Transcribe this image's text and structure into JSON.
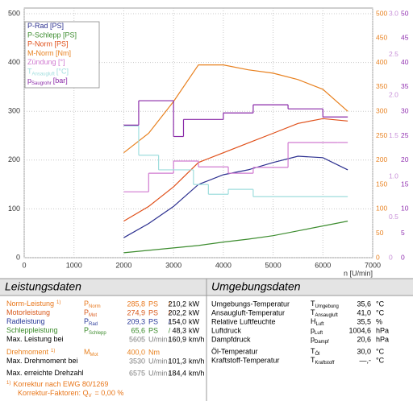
{
  "chart_data": {
    "type": "line",
    "x_label": "n [U/min]",
    "xlim": [
      0,
      7000
    ],
    "xticks": [
      0,
      1000,
      2000,
      3000,
      4000,
      5000,
      6000,
      7000
    ],
    "ylim": [
      0,
      500
    ],
    "yticks": [
      0,
      100,
      200,
      300,
      400,
      500
    ],
    "y2lim": [
      0,
      500
    ],
    "y2ticks": [
      0,
      50,
      100,
      150,
      200,
      250,
      300,
      350,
      400,
      450,
      500
    ],
    "y2color": "#e8801e",
    "y3lim": [
      0,
      3
    ],
    "y3ticks": [
      0,
      0.5,
      {
        "value": 1,
        "label": "1.0"
      },
      1.5,
      {
        "value": 2,
        "label": "2.0"
      },
      2.5,
      {
        "value": 3,
        "label": "3.0"
      }
    ],
    "y3color": "#c890d8",
    "y4lim": [
      0,
      50
    ],
    "y4ticks": [
      0,
      5,
      10,
      15,
      20,
      25,
      30,
      35,
      40,
      45,
      50
    ],
    "y4color": "#9030b0",
    "grid": true,
    "legend": "upper left",
    "series": [
      {
        "name": "P-Rad [PS]",
        "color": "#2b2f8f",
        "style": "line",
        "x": [
          2000,
          2500,
          3000,
          3500,
          4000,
          4500,
          5000,
          5500,
          6000,
          6500
        ],
        "values": [
          41,
          70,
          105,
          150,
          170,
          180,
          195,
          208,
          205,
          180
        ]
      },
      {
        "name": "P-Schlepp [PS]",
        "color": "#3c8c2e",
        "style": "line",
        "x": [
          2000,
          2500,
          3000,
          3500,
          4000,
          4500,
          5000,
          5500,
          6000,
          6500
        ],
        "values": [
          10,
          15,
          20,
          25,
          32,
          38,
          45,
          55,
          65,
          75
        ]
      },
      {
        "name": "P-Norm [PS]",
        "color": "#e0501a",
        "style": "line",
        "x": [
          2000,
          2500,
          3000,
          3500,
          4000,
          4500,
          5000,
          5500,
          6000,
          6500
        ],
        "values": [
          75,
          105,
          145,
          195,
          215,
          235,
          255,
          275,
          285,
          280
        ]
      },
      {
        "name": "M-Norm [Nm]",
        "color": "#e8801e",
        "style": "line",
        "axis": "y2",
        "x": [
          2000,
          2500,
          3000,
          3500,
          4000,
          4500,
          5000,
          5500,
          6000,
          6500
        ],
        "values": [
          215,
          255,
          320,
          395,
          395,
          385,
          378,
          365,
          345,
          300
        ]
      },
      {
        "name": "Zündung [°]",
        "color": "#d07ad0",
        "style": "steps",
        "axis": "y4",
        "x": [
          2000,
          2500,
          3000,
          3500,
          4100,
          4600,
          5300,
          6300,
          6500
        ],
        "values": [
          13.5,
          17.3,
          19.8,
          18.6,
          17.3,
          18.5,
          23.6,
          23.6,
          23.6
        ]
      },
      {
        "name": "T",
        "name_sub": "Ansaugluft",
        "name_unit": "[°C]",
        "color": "#9fdede",
        "style": "steps",
        "axis": "y4",
        "x": [
          2000,
          2300,
          2700,
          3400,
          3700,
          4100,
          4600,
          5000,
          6500
        ],
        "values": [
          27,
          21,
          18,
          15,
          13,
          14,
          12.5,
          12.5,
          12.5
        ]
      },
      {
        "name": "p",
        "name_sub": "Saugrohr",
        "name_unit": "[bar]",
        "color": "#8a2aa8",
        "style": "steps",
        "axis": "y3",
        "x": [
          2000,
          2300,
          3000,
          3200,
          4000,
          4600,
          5300,
          6000,
          6500
        ],
        "values": [
          1.63,
          1.93,
          1.49,
          1.7,
          1.78,
          1.88,
          1.83,
          1.73,
          1.73
        ]
      }
    ]
  },
  "performance": {
    "title": "Leistungsdaten",
    "rows": [
      {
        "label": "Norm-Leistung",
        "label_sup": "1)",
        "color": "#e8761a",
        "symbol": "P",
        "symbol_sub": "Norm",
        "value1": "285,8",
        "unit1": "PS",
        "sep": "/",
        "value2": "210,2",
        "unit2": "kW"
      },
      {
        "label": "Motorleistung",
        "color": "#d8581a",
        "symbol": "P",
        "symbol_sub": "Mot",
        "value1": "274,9",
        "unit1": "PS",
        "sep": "/",
        "value2": "202,2",
        "unit2": "kW"
      },
      {
        "label": "Radleistung",
        "color": "#2a3a9a",
        "symbol": "P",
        "symbol_sub": "Rad",
        "value1": "209,3",
        "unit1": "PS",
        "sep": "/",
        "value2": "154,0",
        "unit2": "kW"
      },
      {
        "label": "Schleppleistung",
        "color": "#3a8a2a",
        "symbol": "P",
        "symbol_sub": "Schlepp",
        "value1": "65,6",
        "unit1": "PS",
        "sep": "/",
        "value2": "48,3",
        "unit2": "kW"
      },
      {
        "label": "Max. Leistung bei",
        "color": "#000000",
        "value_color": "#808080",
        "value1": "5605",
        "unit1": "U/min",
        "sep": "/",
        "value2": "160,9",
        "unit2": "km/h"
      },
      {
        "label": "Drehmoment",
        "label_sup": "1)",
        "color": "#e8801e",
        "symbol": "M",
        "symbol_sub": "Mot",
        "value1": "400,0",
        "unit1": "Nm"
      },
      {
        "label": "Max. Drehmoment bei",
        "color": "#000000",
        "value_color": "#808080",
        "value1": "3530",
        "unit1": "U/min",
        "sep": "/",
        "value2": "101,3",
        "unit2": "km/h"
      },
      {
        "label": "Max. erreichte Drehzahl",
        "color": "#000000",
        "value_color": "#808080",
        "value1": "6575",
        "unit1": "U/min",
        "sep": "/",
        "value2": "184,4",
        "unit2": "km/h"
      }
    ],
    "footnotes": [
      {
        "mark": "1)",
        "text": "Korrektur nach EWG 80/1269"
      },
      {
        "text": "Korrektur-Faktoren: Q",
        "sub": "V",
        "rest": "=  0,00 %"
      }
    ]
  },
  "environment": {
    "title": "Umgebungsdaten",
    "rows": [
      {
        "label": "Umgebungs-Temperatur",
        "symbol": "T",
        "symbol_sub": "Umgebung",
        "value": "35,6",
        "unit": "°C"
      },
      {
        "label": "Ansaugluft-Temperatur",
        "symbol": "T",
        "symbol_sub": "Ansaugluft",
        "value": "41,0",
        "unit": "°C"
      },
      {
        "label": "Relative Luftfeuchte",
        "symbol": "H",
        "symbol_sub": "Luft",
        "value": "35,5",
        "unit": "%"
      },
      {
        "label": "Luftdruck",
        "symbol": "p",
        "symbol_sub": "Luft",
        "value": "1004,6",
        "unit": "hPa"
      },
      {
        "label": "Dampfdruck",
        "symbol": "p",
        "symbol_sub": "Dampf",
        "value": "20,6",
        "unit": "hPa"
      },
      {
        "label": "Öl-Temperatur",
        "symbol": "T",
        "symbol_sub": "Öl",
        "value": "30,0",
        "unit": "°C"
      },
      {
        "label": "Kraftstoff-Temperatur",
        "symbol": "T",
        "symbol_sub": "Kraftstoff",
        "value": "—,-",
        "unit": "°C"
      }
    ]
  }
}
